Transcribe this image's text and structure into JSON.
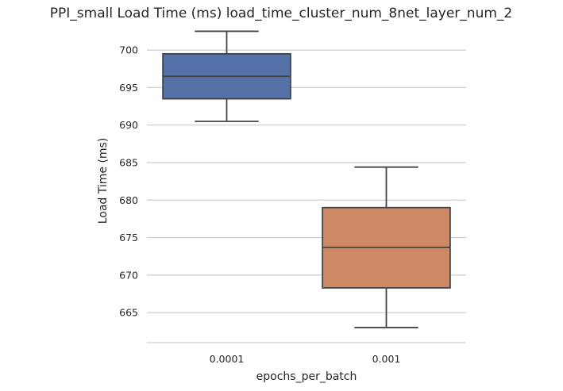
{
  "chart_data": {
    "type": "box",
    "title": "PPI_small Load Time (ms) load_time_cluster_num_8net_layer_num_2",
    "xlabel": "epochs_per_batch",
    "ylabel": "Load Time (ms)",
    "categories": [
      "0.0001",
      "0.001"
    ],
    "colors": [
      "#5471a8",
      "#cd8963"
    ],
    "ylim": [
      661,
      703.5
    ],
    "yticks": [
      665,
      670,
      675,
      680,
      685,
      690,
      695,
      700
    ],
    "grid": "horizontal",
    "boxes": [
      {
        "category": "0.0001",
        "whisker_low": 690.5,
        "q1": 693.5,
        "median": 696.5,
        "q3": 699.5,
        "whisker_high": 702.5
      },
      {
        "category": "0.001",
        "whisker_low": 663.0,
        "q1": 668.3,
        "median": 673.7,
        "q3": 679.0,
        "whisker_high": 684.4
      }
    ]
  }
}
